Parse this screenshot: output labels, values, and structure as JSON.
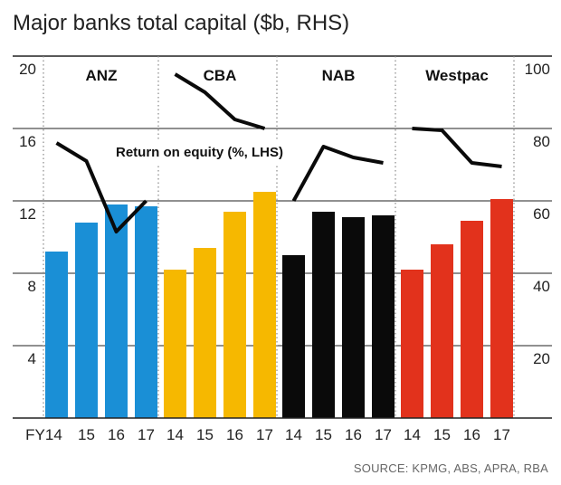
{
  "chart_data": {
    "type": "bar",
    "title": "Major banks total capital ($b, RHS)",
    "source": "SOURCE: KPMG, ABS, APRA, RBA",
    "left_axis": {
      "ticks": [
        "4",
        "8",
        "12",
        "16",
        "20"
      ],
      "values": [
        4,
        8,
        12,
        16,
        20
      ],
      "range": [
        0,
        20
      ]
    },
    "right_axis": {
      "ticks": [
        "20",
        "40",
        "60",
        "80",
        "100"
      ],
      "values": [
        20,
        40,
        60,
        80,
        100
      ],
      "range": [
        0,
        100
      ]
    },
    "x_tick_labels": [
      "FY14",
      "15",
      "16",
      "17",
      "14",
      "15",
      "16",
      "17",
      "14",
      "15",
      "16",
      "17",
      "14",
      "15",
      "16",
      "17"
    ],
    "line_label": "Return on equity (%, LHS)",
    "grid": true,
    "banks": [
      {
        "name": "ANZ",
        "color": "#1a8fd6",
        "capital": [
          46,
          54,
          59,
          58.5
        ],
        "roe": [
          15.2,
          14.2,
          10.3,
          12.0
        ]
      },
      {
        "name": "CBA",
        "color": "#f6b800",
        "capital": [
          41,
          47,
          57,
          62.5
        ],
        "roe": [
          19.0,
          18.0,
          16.5,
          16.0
        ]
      },
      {
        "name": "NAB",
        "color": "#0a0a0a",
        "capital": [
          45,
          57,
          55.5,
          56
        ],
        "roe": [
          12.0,
          15.0,
          14.4,
          14.1
        ]
      },
      {
        "name": "Westpac",
        "color": "#e2321c",
        "capital": [
          41,
          48,
          54.5,
          60.5
        ],
        "roe": [
          16.0,
          15.9,
          14.1,
          13.9
        ]
      }
    ]
  }
}
